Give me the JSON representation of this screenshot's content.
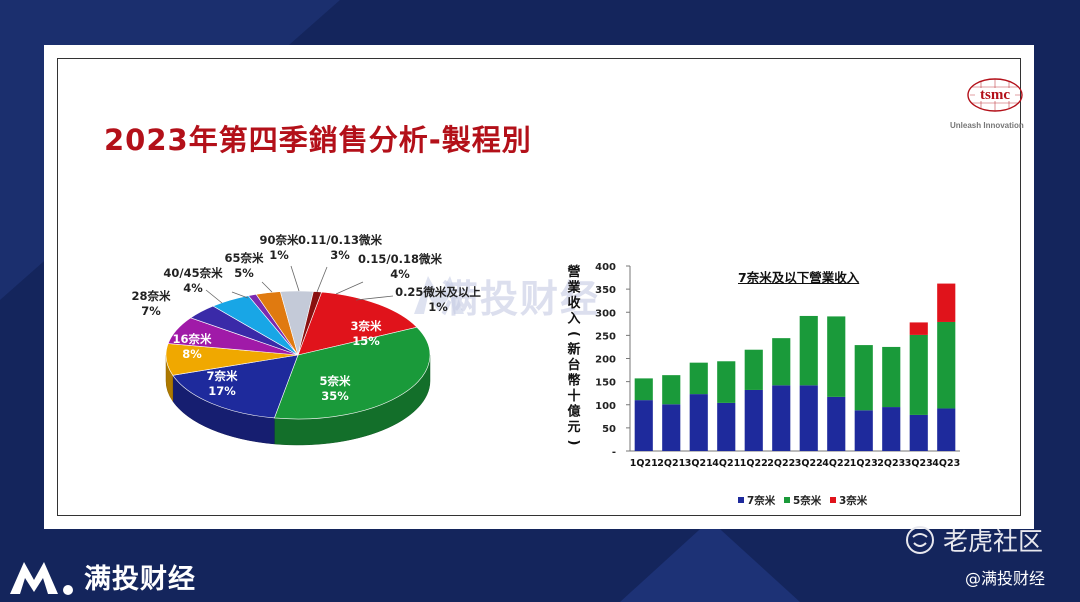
{
  "slide": {
    "title": "2023年第四季銷售分析-製程別",
    "logo_text": "tsmc",
    "tagline": "Unleash Innovation"
  },
  "watermark": {
    "text": "满投财经"
  },
  "footer": {
    "brand": "满投财经",
    "community": "老虎社区",
    "handle": "@满投财经"
  },
  "colors": {
    "dark_blue": "#1e2a9c",
    "green": "#1a9a3a",
    "red": "#e0131b",
    "navy_bg": "#14255c",
    "title_red": "#b31019"
  },
  "chart_data": [
    {
      "type": "pie",
      "title": "",
      "slices": [
        {
          "label": "3奈米",
          "pct_label": "15%",
          "value": 15,
          "color": "#e0131b"
        },
        {
          "label": "5奈米",
          "pct_label": "35%",
          "value": 35,
          "color": "#1a9a3a"
        },
        {
          "label": "7奈米",
          "pct_label": "17%",
          "value": 17,
          "color": "#1e2a9c"
        },
        {
          "label": "16奈米",
          "pct_label": "8%",
          "value": 8,
          "color": "#f0a800"
        },
        {
          "label": "28奈米",
          "pct_label": "7%",
          "value": 7,
          "color": "#a01aa8"
        },
        {
          "label": "40/45奈米",
          "pct_label": "4%",
          "value": 4,
          "color": "#3a2aa8"
        },
        {
          "label": "65奈米",
          "pct_label": "5%",
          "value": 5,
          "color": "#18a6e6"
        },
        {
          "label": "90奈米",
          "pct_label": "1%",
          "value": 1,
          "color": "#7a2ab0"
        },
        {
          "label": "0.11/0.13微米",
          "pct_label": "3%",
          "value": 3,
          "color": "#e07a10"
        },
        {
          "label": "0.15/0.18微米",
          "pct_label": "4%",
          "value": 4,
          "color": "#c4cad8"
        },
        {
          "label": "0.25微米及以上",
          "pct_label": "1%",
          "value": 1,
          "color": "#8a1010"
        }
      ]
    },
    {
      "type": "bar",
      "stacked": true,
      "title": "7奈米及以下營業收入",
      "ylabel": "營業收入(新台幣十億元)",
      "ylim": [
        0,
        400
      ],
      "yticks": [
        "-",
        "50",
        "100",
        "150",
        "200",
        "250",
        "300",
        "350",
        "400"
      ],
      "categories": [
        "1Q21",
        "2Q21",
        "3Q21",
        "4Q21",
        "1Q22",
        "2Q22",
        "3Q22",
        "4Q22",
        "1Q23",
        "2Q23",
        "3Q23",
        "4Q23"
      ],
      "series": [
        {
          "name": "7奈米",
          "color": "#1e2a9c",
          "values": [
            110,
            101,
            123,
            104,
            132,
            142,
            142,
            117,
            88,
            95,
            78,
            92
          ]
        },
        {
          "name": "5奈米",
          "color": "#1a9a3a",
          "values": [
            47,
            63,
            68,
            90,
            87,
            102,
            150,
            174,
            141,
            130,
            173,
            187
          ]
        },
        {
          "name": "3奈米",
          "color": "#e0131b",
          "values": [
            0,
            0,
            0,
            0,
            0,
            0,
            0,
            0,
            0,
            0,
            27,
            83
          ]
        }
      ],
      "legend": "bottom"
    }
  ]
}
